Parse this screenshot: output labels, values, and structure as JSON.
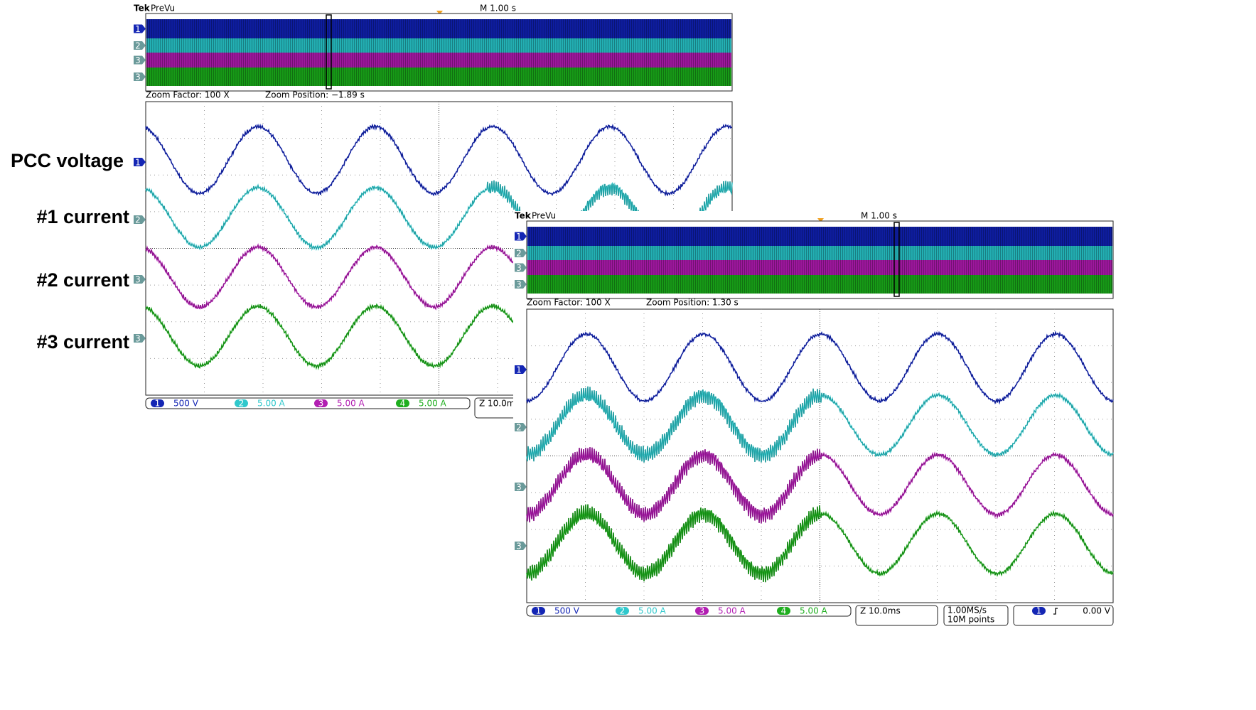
{
  "labels": [
    "PCC voltage",
    "#1 current",
    "#2 current",
    "#3 current"
  ],
  "scopes": [
    {
      "brand": "Tek",
      "mode": "PreVu",
      "timebase": "M 1.00 s",
      "zoom_factor": "Zoom Factor: 100 X",
      "zoom_position": "Zoom Position: −1.89 s",
      "channels": [
        {
          "number": "1",
          "scale": "500 V"
        },
        {
          "number": "2",
          "scale": "5.00 A"
        },
        {
          "number": "3",
          "scale": "5.00 A"
        },
        {
          "number": "4",
          "scale": "5.00 A"
        }
      ],
      "horizontal": "Z 10.0m"
    },
    {
      "brand": "Tek",
      "mode": "PreVu",
      "timebase": "M 1.00 s",
      "zoom_factor": "Zoom Factor: 100 X",
      "zoom_position": "Zoom Position: 1.30 s",
      "channels": [
        {
          "number": "1",
          "scale": "500 V"
        },
        {
          "number": "2",
          "scale": "5.00 A"
        },
        {
          "number": "3",
          "scale": "5.00 A"
        },
        {
          "number": "4",
          "scale": "5.00 A"
        }
      ],
      "horizontal": "Z 10.0ms",
      "sample_rate": "1.00MS/s",
      "record_length": "10M points",
      "trigger_channel": "1",
      "trigger_level": "0.00 V"
    }
  ]
}
